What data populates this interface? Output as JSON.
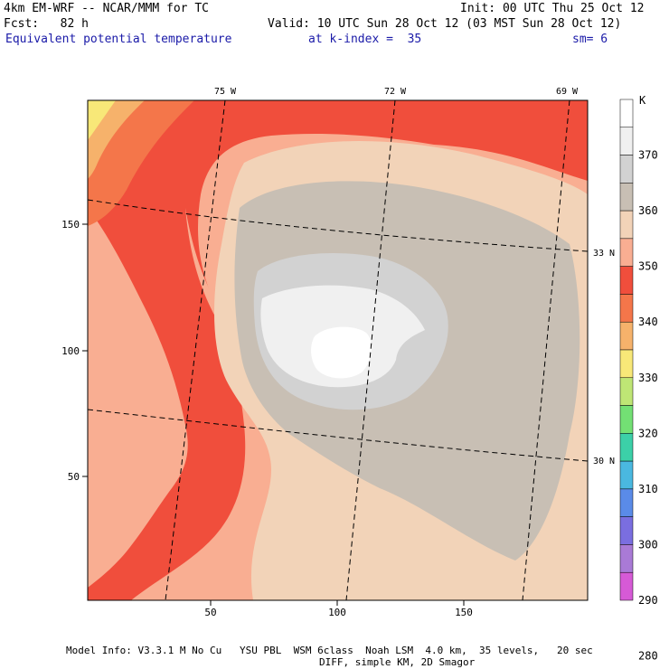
{
  "header": {
    "line1_left": "4km EM-WRF -- NCAR/MMM for TC",
    "line1_right": "Init: 00 UTC Thu 25 Oct 12",
    "line2_left": "Fcst:   82 h",
    "line2_right": "Valid: 10 UTC Sun 28 Oct 12 (03 MST Sun 28 Oct 12)",
    "line3_field": "Equivalent potential temperature",
    "line3_level": "at k-index =  35",
    "line3_sm": "sm= 6"
  },
  "map": {
    "x_ticks": [
      "50",
      "100",
      "150"
    ],
    "y_ticks": [
      "50",
      "100",
      "150"
    ],
    "lon_labels": [
      "75 W",
      "72 W",
      "69 W"
    ],
    "lat_labels": [
      "33 N",
      "30 N"
    ]
  },
  "colorbar": {
    "unit": "K",
    "labels": [
      "370",
      "360",
      "350",
      "340",
      "330",
      "320",
      "310",
      "300",
      "290",
      "280"
    ],
    "colors": [
      "#ffffff",
      "#f0f0f0",
      "#d2d2d2",
      "#c8bfb4",
      "#f2d3b8",
      "#f9ae92",
      "#f04e3c",
      "#f4764a",
      "#f6b26b",
      "#f8e878",
      "#bfe675",
      "#73e074",
      "#3cd0a8",
      "#4ab8e0",
      "#5a8be8",
      "#7a6ee0",
      "#a97ad6",
      "#d65ad6"
    ]
  },
  "footer": {
    "line1": "Model Info: V3.3.1 M No Cu   YSU PBL  WSM 6class  Noah LSM  4.0 km,  35 levels,   20 sec",
    "line2": "DIFF, simple KM, 2D Smagor"
  }
}
